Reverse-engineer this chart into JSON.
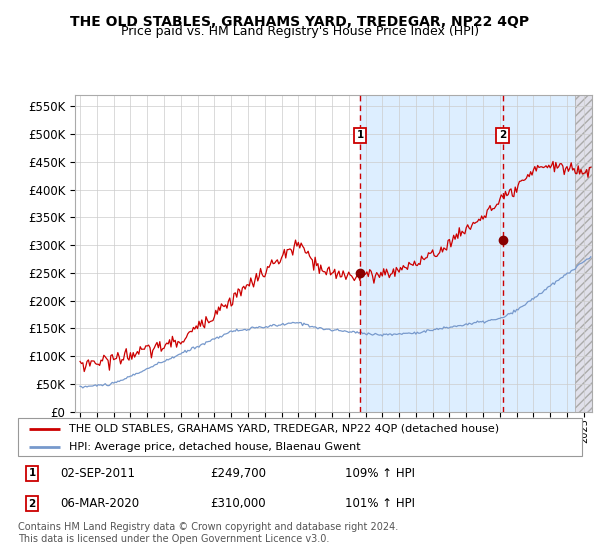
{
  "title": "THE OLD STABLES, GRAHAMS YARD, TREDEGAR, NP22 4QP",
  "subtitle": "Price paid vs. HM Land Registry's House Price Index (HPI)",
  "legend_line1": "THE OLD STABLES, GRAHAMS YARD, TREDEGAR, NP22 4QP (detached house)",
  "legend_line2": "HPI: Average price, detached house, Blaenau Gwent",
  "annotation1_date": "02-SEP-2011",
  "annotation1_price": "£249,700",
  "annotation1_hpi": "109% ↑ HPI",
  "annotation2_date": "06-MAR-2020",
  "annotation2_price": "£310,000",
  "annotation2_hpi": "101% ↑ HPI",
  "footer": "Contains HM Land Registry data © Crown copyright and database right 2024.\nThis data is licensed under the Open Government Licence v3.0.",
  "ylim": [
    0,
    570000
  ],
  "yticks": [
    0,
    50000,
    100000,
    150000,
    200000,
    250000,
    300000,
    350000,
    400000,
    450000,
    500000,
    550000
  ],
  "xlim_start": 1994.7,
  "xlim_end": 2025.5,
  "hatch_start": 2024.5,
  "bg_fill_start": 2011.67,
  "vline1_x": 2011.67,
  "vline2_x": 2020.17,
  "dot1_x": 2011.67,
  "dot1_y": 249700,
  "dot2_x": 2020.17,
  "dot2_y": 310000,
  "red_color": "#cc0000",
  "blue_color": "#7799cc",
  "bg_fill_color": "#ddeeff",
  "grid_color": "#cccccc",
  "chart_bg": "#f8f8ff",
  "title_fontsize": 10,
  "subtitle_fontsize": 9,
  "axis_fontsize": 8.5
}
